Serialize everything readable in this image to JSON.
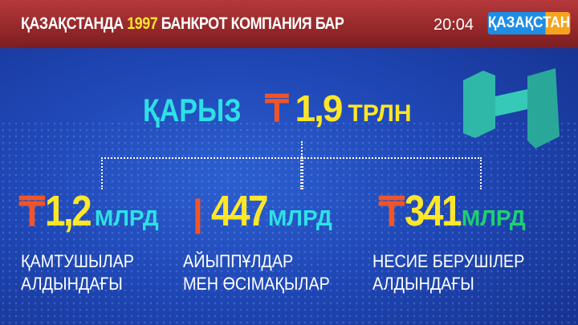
{
  "ticker": {
    "headline_pre": "ҚАЗАҚСТАНДА",
    "headline_num": "1997",
    "headline_post": "БАНКРОТ КОМПАНИЯ БАР",
    "time": "20:04",
    "channel_logo": "ҚАЗАҚСТАН"
  },
  "total": {
    "label": "ҚАРЫЗ",
    "currency": "₸",
    "value": "1,9",
    "unit": "ТРЛН"
  },
  "items": [
    {
      "currency": "₸",
      "value": "1,2",
      "unit": "МЛРД",
      "unit_color": "#2ee0e6",
      "desc1": "ҚАМТУШЫЛАР",
      "desc2": "АЛДЫНДАҒЫ"
    },
    {
      "currency": "|",
      "value": "447",
      "unit": "МЛРД",
      "unit_color": "#2ee0e6",
      "desc1": "АЙЫППҰЛДАР",
      "desc2": "МЕН ӨСІМАҚЫЛАР"
    },
    {
      "currency": "₸",
      "value": "341",
      "unit": "МЛРД",
      "unit_color": "#1fd070",
      "desc1": "НЕСИЕ БЕРУШІЛЕР",
      "desc2": "АЛДЫНДАҒЫ"
    }
  ]
}
